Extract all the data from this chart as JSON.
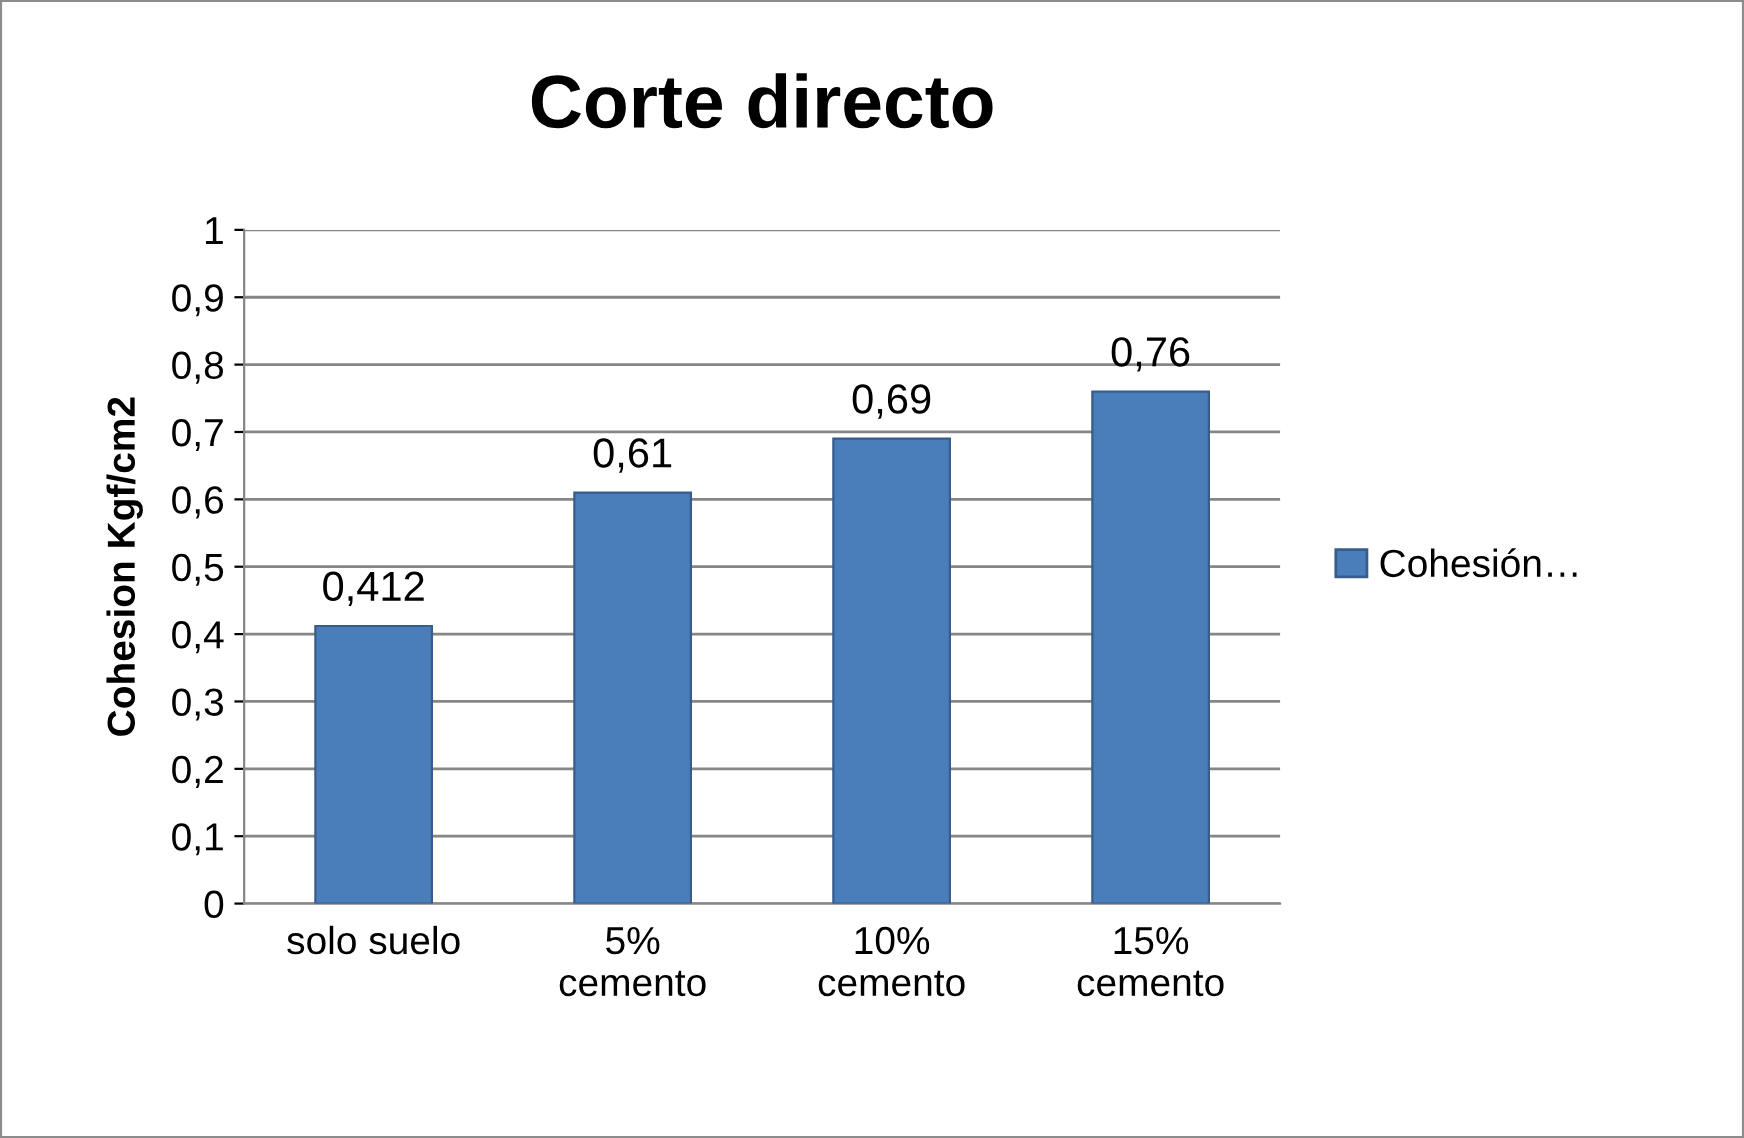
{
  "chart_data": {
    "type": "bar",
    "title": "Corte directo",
    "ylabel": "Cohesion Kgf/cm2",
    "categories": [
      "solo suelo",
      "5%\ncemento",
      "10%\ncemento",
      "15%\ncemento"
    ],
    "series": [
      {
        "name": "Cohesión…",
        "color": "#4a7ebb",
        "values": [
          0.412,
          0.61,
          0.69,
          0.76
        ],
        "value_labels": [
          "0,412",
          "0,61",
          "0,69",
          "0,76"
        ]
      }
    ],
    "ylim": [
      0,
      1
    ],
    "yticks": [
      0,
      {
        "value": 0.1,
        "label": "0,1"
      },
      {
        "value": 0.2,
        "label": "0,2"
      },
      {
        "value": 0.3,
        "label": "0,3"
      },
      {
        "value": 0.4,
        "label": "0,4"
      },
      {
        "value": 0.5,
        "label": "0,5"
      },
      {
        "value": 0.6,
        "label": "0,6"
      },
      {
        "value": 0.7,
        "label": "0,7"
      },
      {
        "value": 0.8,
        "label": "0,8"
      },
      {
        "value": 0.9,
        "label": "0,9"
      },
      1
    ],
    "grid": "y",
    "legend": "right"
  }
}
